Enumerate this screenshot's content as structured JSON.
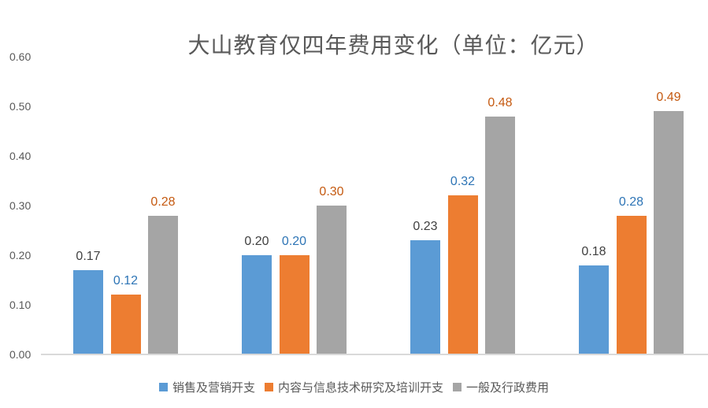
{
  "chart_data": {
    "type": "bar",
    "title": "大山教育仅四年费用变化（单位：亿元）",
    "xlabel": "",
    "ylabel": "",
    "ylim": [
      0,
      0.6
    ],
    "grid": false,
    "legend_position": "bottom",
    "x_axis": {
      "tick_labels": []
    },
    "y_axis": {
      "tick_labels": [
        "0.60",
        "0.50",
        "0.40",
        "0.30",
        "0.20",
        "0.10",
        "0.00"
      ],
      "min": 0.0,
      "max": 0.6,
      "step": 0.1
    },
    "series": [
      {
        "name": "销售及营销开支",
        "color": "#5B9BD5",
        "label_color": "#404040",
        "values": [
          0.17,
          0.2,
          0.23,
          0.18
        ],
        "value_labels": [
          "0.17",
          "0.20",
          "0.23",
          "0.18"
        ]
      },
      {
        "name": "内容与信息技术研究及培训开支",
        "color": "#ED7D31",
        "label_color": "#2E75B6",
        "values": [
          0.12,
          0.2,
          0.32,
          0.28
        ],
        "value_labels": [
          "0.12",
          "0.20",
          "0.32",
          "0.28"
        ]
      },
      {
        "name": "一般及行政费用",
        "color": "#A5A5A5",
        "label_color": "#C55A11",
        "values": [
          0.28,
          0.3,
          0.48,
          0.49
        ],
        "value_labels": [
          "0.28",
          "0.30",
          "0.48",
          "0.49"
        ]
      }
    ],
    "style": {
      "text_color": "#595959",
      "axis_line_color": "#D9D9D9",
      "background": "#FFFFFF"
    }
  }
}
